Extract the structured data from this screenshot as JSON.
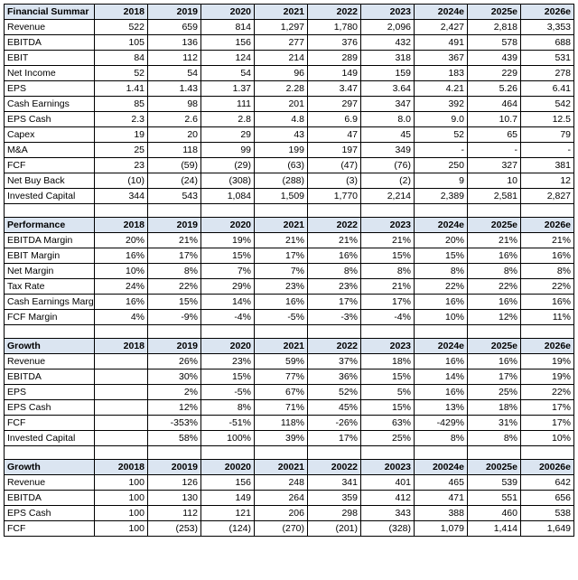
{
  "colors": {
    "header_bg": "#dbe5f1",
    "border": "#000000",
    "text": "#000000",
    "bg": "#ffffff"
  },
  "years": [
    "2018",
    "2019",
    "2020",
    "2021",
    "2022",
    "2023",
    "2024e",
    "2025e",
    "2026e"
  ],
  "sections": [
    {
      "title": "Financial Summar",
      "rows": [
        {
          "label": "Revenue",
          "vals": [
            "522",
            "659",
            "814",
            "1,297",
            "1,780",
            "2,096",
            "2,427",
            "2,818",
            "3,353"
          ]
        },
        {
          "label": "EBITDA",
          "vals": [
            "105",
            "136",
            "156",
            "277",
            "376",
            "432",
            "491",
            "578",
            "688"
          ]
        },
        {
          "label": "EBIT",
          "vals": [
            "84",
            "112",
            "124",
            "214",
            "289",
            "318",
            "367",
            "439",
            "531"
          ]
        },
        {
          "label": "Net Income",
          "vals": [
            "52",
            "54",
            "54",
            "96",
            "149",
            "159",
            "183",
            "229",
            "278"
          ]
        },
        {
          "label": "EPS",
          "vals": [
            "1.41",
            "1.43",
            "1.37",
            "2.28",
            "3.47",
            "3.64",
            "4.21",
            "5.26",
            "6.41"
          ]
        },
        {
          "label": "Cash Earnings",
          "vals": [
            "85",
            "98",
            "111",
            "201",
            "297",
            "347",
            "392",
            "464",
            "542"
          ]
        },
        {
          "label": "EPS Cash",
          "vals": [
            "2.3",
            "2.6",
            "2.8",
            "4.8",
            "6.9",
            "8.0",
            "9.0",
            "10.7",
            "12.5"
          ]
        },
        {
          "label": "Capex",
          "vals": [
            "19",
            "20",
            "29",
            "43",
            "47",
            "45",
            "52",
            "65",
            "79"
          ]
        },
        {
          "label": "M&A",
          "vals": [
            "25",
            "118",
            "99",
            "199",
            "197",
            "349",
            "-",
            "-",
            "-"
          ]
        },
        {
          "label": "FCF",
          "vals": [
            "23",
            "(59)",
            "(29)",
            "(63)",
            "(47)",
            "(76)",
            "250",
            "327",
            "381"
          ]
        },
        {
          "label": "Net Buy Back",
          "vals": [
            "(10)",
            "(24)",
            "(308)",
            "(288)",
            "(3)",
            "(2)",
            "9",
            "10",
            "12"
          ]
        },
        {
          "label": "Invested Capital",
          "vals": [
            "344",
            "543",
            "1,084",
            "1,509",
            "1,770",
            "2,214",
            "2,389",
            "2,581",
            "2,827"
          ]
        },
        {
          "label": "",
          "vals": [
            "",
            "",
            "",
            "",
            "",
            "",
            "",
            "",
            ""
          ]
        }
      ]
    },
    {
      "title": "Performance",
      "rows": [
        {
          "label": "EBITDA Margin",
          "vals": [
            "20%",
            "21%",
            "19%",
            "21%",
            "21%",
            "21%",
            "20%",
            "21%",
            "21%"
          ]
        },
        {
          "label": "EBIT Margin",
          "vals": [
            "16%",
            "17%",
            "15%",
            "17%",
            "16%",
            "15%",
            "15%",
            "16%",
            "16%"
          ]
        },
        {
          "label": "Net Margin",
          "vals": [
            "10%",
            "8%",
            "7%",
            "7%",
            "8%",
            "8%",
            "8%",
            "8%",
            "8%"
          ]
        },
        {
          "label": "Tax Rate",
          "vals": [
            "24%",
            "22%",
            "29%",
            "23%",
            "23%",
            "21%",
            "22%",
            "22%",
            "22%"
          ]
        },
        {
          "label": "Cash Earnings Margi",
          "vals": [
            "16%",
            "15%",
            "14%",
            "16%",
            "17%",
            "17%",
            "16%",
            "16%",
            "16%"
          ]
        },
        {
          "label": "FCF Margin",
          "vals": [
            "4%",
            "-9%",
            "-4%",
            "-5%",
            "-3%",
            "-4%",
            "10%",
            "12%",
            "11%"
          ]
        },
        {
          "label": "",
          "vals": [
            "",
            "",
            "",
            "",
            "",
            "",
            "",
            "",
            ""
          ]
        }
      ]
    },
    {
      "title": "Growth",
      "rows": [
        {
          "label": "Revenue",
          "vals": [
            "",
            "26%",
            "23%",
            "59%",
            "37%",
            "18%",
            "16%",
            "16%",
            "19%"
          ]
        },
        {
          "label": "EBITDA",
          "vals": [
            "",
            "30%",
            "15%",
            "77%",
            "36%",
            "15%",
            "14%",
            "17%",
            "19%"
          ]
        },
        {
          "label": "EPS",
          "vals": [
            "",
            "2%",
            "-5%",
            "67%",
            "52%",
            "5%",
            "16%",
            "25%",
            "22%"
          ]
        },
        {
          "label": "EPS Cash",
          "vals": [
            "",
            "12%",
            "8%",
            "71%",
            "45%",
            "15%",
            "13%",
            "18%",
            "17%"
          ]
        },
        {
          "label": "FCF",
          "vals": [
            "",
            "-353%",
            "-51%",
            "118%",
            "-26%",
            "63%",
            "-429%",
            "31%",
            "17%"
          ]
        },
        {
          "label": "Invested Capital",
          "vals": [
            "",
            "58%",
            "100%",
            "39%",
            "17%",
            "25%",
            "8%",
            "8%",
            "10%"
          ]
        },
        {
          "label": "",
          "vals": [
            "",
            "",
            "",
            "",
            "",
            "",
            "",
            "",
            ""
          ]
        }
      ]
    },
    {
      "title": "Growth",
      "yearsOverride": [
        "20018",
        "20019",
        "20020",
        "20021",
        "20022",
        "20023",
        "20024e",
        "20025e",
        "20026e"
      ],
      "rows": [
        {
          "label": "Revenue",
          "vals": [
            "100",
            "126",
            "156",
            "248",
            "341",
            "401",
            "465",
            "539",
            "642"
          ]
        },
        {
          "label": "EBITDA",
          "vals": [
            "100",
            "130",
            "149",
            "264",
            "359",
            "412",
            "471",
            "551",
            "656"
          ]
        },
        {
          "label": "EPS Cash",
          "vals": [
            "100",
            "112",
            "121",
            "206",
            "298",
            "343",
            "388",
            "460",
            "538"
          ]
        },
        {
          "label": "FCF",
          "vals": [
            "100",
            "(253)",
            "(124)",
            "(270)",
            "(201)",
            "(328)",
            "1,079",
            "1,414",
            "1,649"
          ]
        }
      ]
    }
  ]
}
